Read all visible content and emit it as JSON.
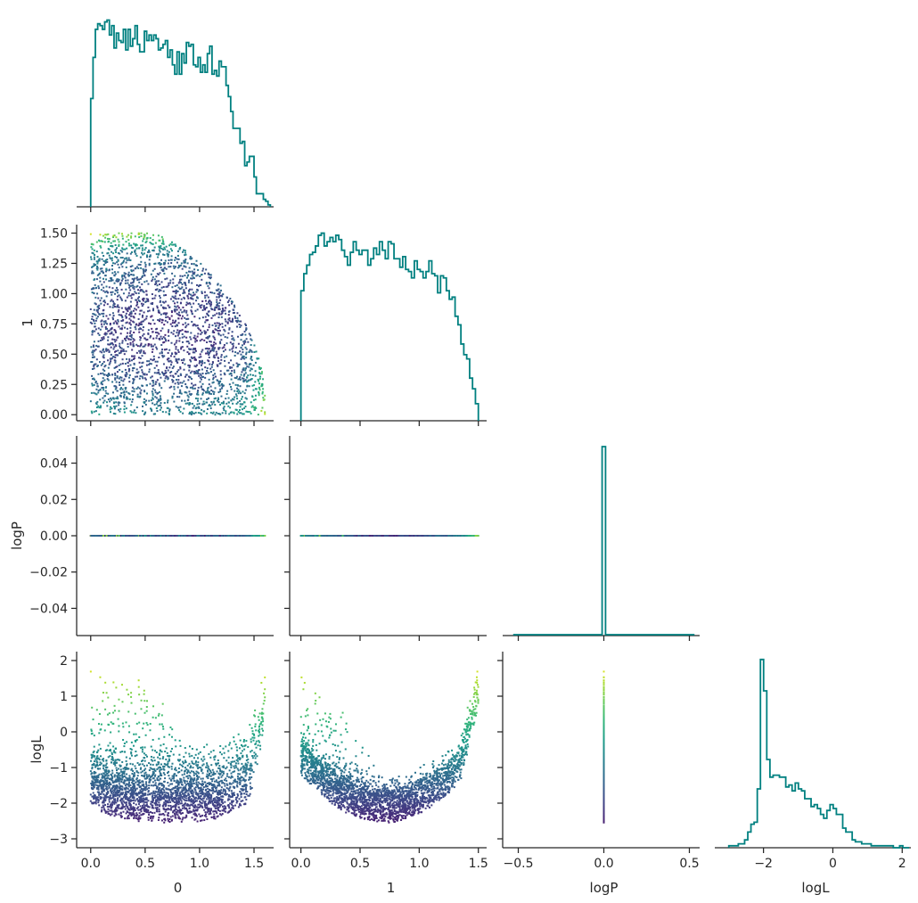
{
  "colors": {
    "histogram": "#008080",
    "axis": "#262626",
    "colormap": "viridis"
  },
  "chart_data": {
    "type": "corner-plot",
    "variables": [
      "0",
      "1",
      "logP",
      "logL"
    ],
    "axis_labels": {
      "col0": "0",
      "col1": "1",
      "col2": "logP",
      "col3": "logL",
      "row1": "1",
      "row2": "logP",
      "row3": "logL"
    },
    "ranges": {
      "0": [
        -0.08,
        1.68
      ],
      "1": [
        -0.05,
        1.57
      ],
      "logP": [
        -0.055,
        0.055
      ],
      "logP_x": [
        -0.56,
        0.56
      ],
      "logL": [
        -3.25,
        2.25
      ]
    },
    "ticks": {
      "0": [
        0.0,
        0.5,
        1.0,
        1.5
      ],
      "0_labels": [
        "0.0",
        "0.5",
        "1.0",
        "1.5"
      ],
      "1": [
        0.0,
        0.25,
        0.5,
        0.75,
        1.0,
        1.25,
        1.5
      ],
      "1_labels": [
        "0.00",
        "0.25",
        "0.50",
        "0.75",
        "1.00",
        "1.25",
        "1.50"
      ],
      "1_x": [
        0.0,
        0.5,
        1.0,
        1.5
      ],
      "1_x_labels": [
        "0.0",
        "0.5",
        "1.0",
        "1.5"
      ],
      "logP_y": [
        -0.04,
        -0.02,
        0.0,
        0.02,
        0.04
      ],
      "logP_y_labels": [
        "−0.04",
        "−0.02",
        "0.00",
        "0.02",
        "0.04"
      ],
      "logP_x": [
        -0.5,
        0.0,
        0.5
      ],
      "logP_x_labels": [
        "−0.5",
        "0.0",
        "0.5"
      ],
      "logL_y": [
        -3,
        -2,
        -1,
        0,
        1,
        2
      ],
      "logL_y_labels": [
        "−3",
        "−2",
        "−1",
        "0",
        "1",
        "2"
      ],
      "logL_x": [
        -2,
        0,
        2
      ],
      "logL_x_labels": [
        "−2",
        "0",
        "2"
      ]
    },
    "hist_0": {
      "range": [
        0,
        1.65
      ],
      "counts": [
        58,
        80,
        95,
        98,
        97,
        95,
        99,
        100,
        92,
        97,
        85,
        93,
        89,
        88,
        95,
        84,
        95,
        86,
        90,
        97,
        87,
        83,
        83,
        94,
        89,
        92,
        89,
        92,
        90,
        84,
        85,
        87,
        89,
        80,
        84,
        76,
        71,
        83,
        71,
        82,
        77,
        88,
        86,
        87,
        76,
        75,
        80,
        72,
        76,
        72,
        82,
        86,
        71,
        73,
        70,
        78,
        75,
        75,
        65,
        59,
        51,
        42,
        42,
        42,
        34,
        35,
        22,
        24,
        27,
        27,
        16,
        7,
        7,
        7,
        4,
        3,
        1
      ],
      "hist_ymax": 105
    },
    "hist_1": {
      "range": [
        0,
        1.5
      ],
      "counts": [
        61,
        69,
        73,
        78,
        79,
        82,
        87,
        88,
        82,
        84,
        86,
        84,
        87,
        85,
        80,
        77,
        73,
        79,
        84,
        80,
        78,
        80,
        80,
        73,
        76,
        81,
        78,
        84,
        80,
        76,
        84,
        83,
        76,
        76,
        72,
        77,
        71,
        70,
        67,
        75,
        71,
        70,
        67,
        70,
        75,
        69,
        68,
        60,
        68,
        67,
        61,
        57,
        58,
        49,
        45,
        36,
        31,
        29,
        20,
        15,
        8
      ],
      "hist_ymax": 92
    },
    "hist_logP": {
      "bin": [
        -0.01,
        0.01
      ],
      "peak": 1.0,
      "baseline_range": [
        -0.53,
        0.53
      ]
    },
    "hist_logL": {
      "range": [
        -3.0,
        2.2
      ],
      "counts": [
        1,
        1,
        1,
        2,
        2,
        4,
        8,
        12,
        13,
        30,
        96,
        80,
        45,
        36,
        37,
        37,
        36,
        36,
        31,
        32,
        29,
        33,
        30,
        29,
        25,
        25,
        21,
        22,
        20,
        17,
        15,
        19,
        22,
        20,
        17,
        17,
        10,
        8,
        8,
        4,
        3,
        3,
        2,
        2,
        2,
        1,
        1,
        1,
        1,
        1,
        1,
        1,
        0,
        0,
        1,
        0,
        0
      ],
      "hist_ymax": 100
    },
    "scatter": {
      "n_points": 2600,
      "marker_size": 2,
      "color_by": "logL",
      "color_range": [
        -3.0,
        2.0
      ]
    }
  }
}
